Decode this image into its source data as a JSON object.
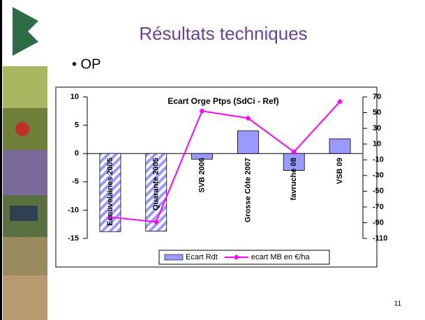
{
  "slide": {
    "title": "Résultats techniques",
    "bullet": "• OP",
    "page_number": "11"
  },
  "chart_data": {
    "type": "bar-line",
    "title": "Ecart Orge Ptps (SdCi - Ref)",
    "categories": [
      "Ecouvelaines 2005",
      "Quarante 2005",
      "SVB 2006",
      "Grosse Côte 2007",
      "favruche 08",
      "VSB 09"
    ],
    "series": [
      {
        "name": "Ecart Rdt",
        "type": "bar",
        "color": "#9999ff",
        "hatched": [
          true,
          true,
          false,
          false,
          false,
          false
        ],
        "values": [
          -13.8,
          -13.7,
          -1,
          4,
          -3,
          2.6
        ]
      },
      {
        "name": "ecart MB en €/ha",
        "type": "line",
        "axis": "y2",
        "color": "#ff00ff",
        "values": [
          -83,
          -89,
          52,
          43,
          0,
          64
        ]
      }
    ],
    "ylim": [
      -15,
      10
    ],
    "yticks": [
      -15,
      -10,
      -5,
      0,
      5,
      10
    ],
    "y2lim": [
      -110,
      70
    ],
    "y2ticks": [
      -110,
      -90,
      -70,
      -50,
      -30,
      -10,
      10,
      30,
      50,
      70
    ],
    "legend": "bottom"
  }
}
